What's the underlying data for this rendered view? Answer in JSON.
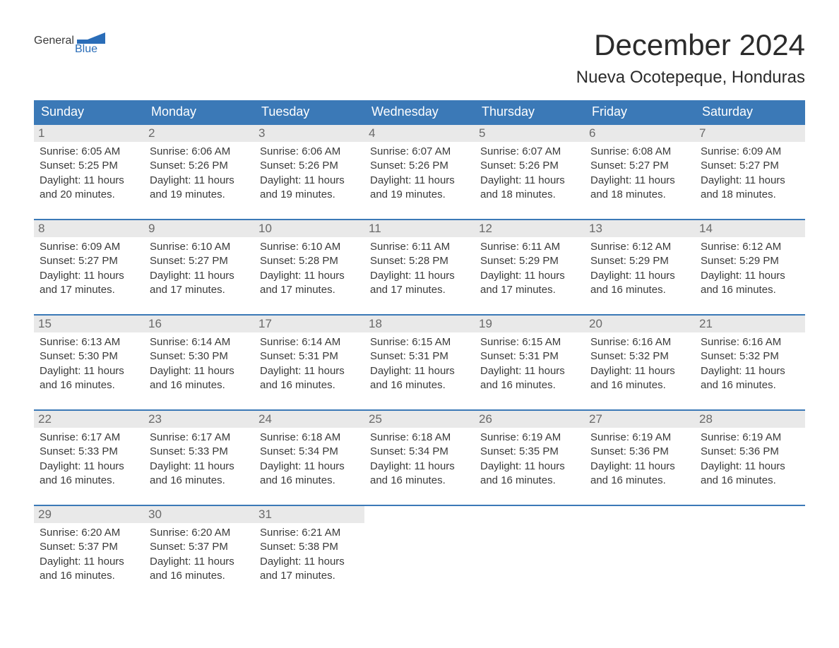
{
  "logo": {
    "text_general": "General",
    "text_blue": "Blue",
    "flag_color": "#2a6db8",
    "general_color": "#3a3a3a",
    "blue_color": "#2a6db8"
  },
  "header": {
    "month_title": "December 2024",
    "location": "Nueva Ocotepeque, Honduras"
  },
  "colors": {
    "header_bg": "#3b79b7",
    "header_text": "#ffffff",
    "daynum_bg": "#e9e9e9",
    "daynum_text": "#6a6a6a",
    "body_text": "#3a3a3a",
    "row_border": "#3b79b7",
    "page_bg": "#ffffff"
  },
  "fonts": {
    "month_title_size": 42,
    "location_size": 24,
    "day_header_size": 18,
    "day_number_size": 17,
    "body_size": 15
  },
  "day_headers": [
    "Sunday",
    "Monday",
    "Tuesday",
    "Wednesday",
    "Thursday",
    "Friday",
    "Saturday"
  ],
  "weeks": [
    [
      {
        "day": "1",
        "sunrise": "Sunrise: 6:05 AM",
        "sunset": "Sunset: 5:25 PM",
        "daylight1": "Daylight: 11 hours",
        "daylight2": "and 20 minutes."
      },
      {
        "day": "2",
        "sunrise": "Sunrise: 6:06 AM",
        "sunset": "Sunset: 5:26 PM",
        "daylight1": "Daylight: 11 hours",
        "daylight2": "and 19 minutes."
      },
      {
        "day": "3",
        "sunrise": "Sunrise: 6:06 AM",
        "sunset": "Sunset: 5:26 PM",
        "daylight1": "Daylight: 11 hours",
        "daylight2": "and 19 minutes."
      },
      {
        "day": "4",
        "sunrise": "Sunrise: 6:07 AM",
        "sunset": "Sunset: 5:26 PM",
        "daylight1": "Daylight: 11 hours",
        "daylight2": "and 19 minutes."
      },
      {
        "day": "5",
        "sunrise": "Sunrise: 6:07 AM",
        "sunset": "Sunset: 5:26 PM",
        "daylight1": "Daylight: 11 hours",
        "daylight2": "and 18 minutes."
      },
      {
        "day": "6",
        "sunrise": "Sunrise: 6:08 AM",
        "sunset": "Sunset: 5:27 PM",
        "daylight1": "Daylight: 11 hours",
        "daylight2": "and 18 minutes."
      },
      {
        "day": "7",
        "sunrise": "Sunrise: 6:09 AM",
        "sunset": "Sunset: 5:27 PM",
        "daylight1": "Daylight: 11 hours",
        "daylight2": "and 18 minutes."
      }
    ],
    [
      {
        "day": "8",
        "sunrise": "Sunrise: 6:09 AM",
        "sunset": "Sunset: 5:27 PM",
        "daylight1": "Daylight: 11 hours",
        "daylight2": "and 17 minutes."
      },
      {
        "day": "9",
        "sunrise": "Sunrise: 6:10 AM",
        "sunset": "Sunset: 5:27 PM",
        "daylight1": "Daylight: 11 hours",
        "daylight2": "and 17 minutes."
      },
      {
        "day": "10",
        "sunrise": "Sunrise: 6:10 AM",
        "sunset": "Sunset: 5:28 PM",
        "daylight1": "Daylight: 11 hours",
        "daylight2": "and 17 minutes."
      },
      {
        "day": "11",
        "sunrise": "Sunrise: 6:11 AM",
        "sunset": "Sunset: 5:28 PM",
        "daylight1": "Daylight: 11 hours",
        "daylight2": "and 17 minutes."
      },
      {
        "day": "12",
        "sunrise": "Sunrise: 6:11 AM",
        "sunset": "Sunset: 5:29 PM",
        "daylight1": "Daylight: 11 hours",
        "daylight2": "and 17 minutes."
      },
      {
        "day": "13",
        "sunrise": "Sunrise: 6:12 AM",
        "sunset": "Sunset: 5:29 PM",
        "daylight1": "Daylight: 11 hours",
        "daylight2": "and 16 minutes."
      },
      {
        "day": "14",
        "sunrise": "Sunrise: 6:12 AM",
        "sunset": "Sunset: 5:29 PM",
        "daylight1": "Daylight: 11 hours",
        "daylight2": "and 16 minutes."
      }
    ],
    [
      {
        "day": "15",
        "sunrise": "Sunrise: 6:13 AM",
        "sunset": "Sunset: 5:30 PM",
        "daylight1": "Daylight: 11 hours",
        "daylight2": "and 16 minutes."
      },
      {
        "day": "16",
        "sunrise": "Sunrise: 6:14 AM",
        "sunset": "Sunset: 5:30 PM",
        "daylight1": "Daylight: 11 hours",
        "daylight2": "and 16 minutes."
      },
      {
        "day": "17",
        "sunrise": "Sunrise: 6:14 AM",
        "sunset": "Sunset: 5:31 PM",
        "daylight1": "Daylight: 11 hours",
        "daylight2": "and 16 minutes."
      },
      {
        "day": "18",
        "sunrise": "Sunrise: 6:15 AM",
        "sunset": "Sunset: 5:31 PM",
        "daylight1": "Daylight: 11 hours",
        "daylight2": "and 16 minutes."
      },
      {
        "day": "19",
        "sunrise": "Sunrise: 6:15 AM",
        "sunset": "Sunset: 5:31 PM",
        "daylight1": "Daylight: 11 hours",
        "daylight2": "and 16 minutes."
      },
      {
        "day": "20",
        "sunrise": "Sunrise: 6:16 AM",
        "sunset": "Sunset: 5:32 PM",
        "daylight1": "Daylight: 11 hours",
        "daylight2": "and 16 minutes."
      },
      {
        "day": "21",
        "sunrise": "Sunrise: 6:16 AM",
        "sunset": "Sunset: 5:32 PM",
        "daylight1": "Daylight: 11 hours",
        "daylight2": "and 16 minutes."
      }
    ],
    [
      {
        "day": "22",
        "sunrise": "Sunrise: 6:17 AM",
        "sunset": "Sunset: 5:33 PM",
        "daylight1": "Daylight: 11 hours",
        "daylight2": "and 16 minutes."
      },
      {
        "day": "23",
        "sunrise": "Sunrise: 6:17 AM",
        "sunset": "Sunset: 5:33 PM",
        "daylight1": "Daylight: 11 hours",
        "daylight2": "and 16 minutes."
      },
      {
        "day": "24",
        "sunrise": "Sunrise: 6:18 AM",
        "sunset": "Sunset: 5:34 PM",
        "daylight1": "Daylight: 11 hours",
        "daylight2": "and 16 minutes."
      },
      {
        "day": "25",
        "sunrise": "Sunrise: 6:18 AM",
        "sunset": "Sunset: 5:34 PM",
        "daylight1": "Daylight: 11 hours",
        "daylight2": "and 16 minutes."
      },
      {
        "day": "26",
        "sunrise": "Sunrise: 6:19 AM",
        "sunset": "Sunset: 5:35 PM",
        "daylight1": "Daylight: 11 hours",
        "daylight2": "and 16 minutes."
      },
      {
        "day": "27",
        "sunrise": "Sunrise: 6:19 AM",
        "sunset": "Sunset: 5:36 PM",
        "daylight1": "Daylight: 11 hours",
        "daylight2": "and 16 minutes."
      },
      {
        "day": "28",
        "sunrise": "Sunrise: 6:19 AM",
        "sunset": "Sunset: 5:36 PM",
        "daylight1": "Daylight: 11 hours",
        "daylight2": "and 16 minutes."
      }
    ],
    [
      {
        "day": "29",
        "sunrise": "Sunrise: 6:20 AM",
        "sunset": "Sunset: 5:37 PM",
        "daylight1": "Daylight: 11 hours",
        "daylight2": "and 16 minutes."
      },
      {
        "day": "30",
        "sunrise": "Sunrise: 6:20 AM",
        "sunset": "Sunset: 5:37 PM",
        "daylight1": "Daylight: 11 hours",
        "daylight2": "and 16 minutes."
      },
      {
        "day": "31",
        "sunrise": "Sunrise: 6:21 AM",
        "sunset": "Sunset: 5:38 PM",
        "daylight1": "Daylight: 11 hours",
        "daylight2": "and 17 minutes."
      },
      null,
      null,
      null,
      null
    ]
  ]
}
